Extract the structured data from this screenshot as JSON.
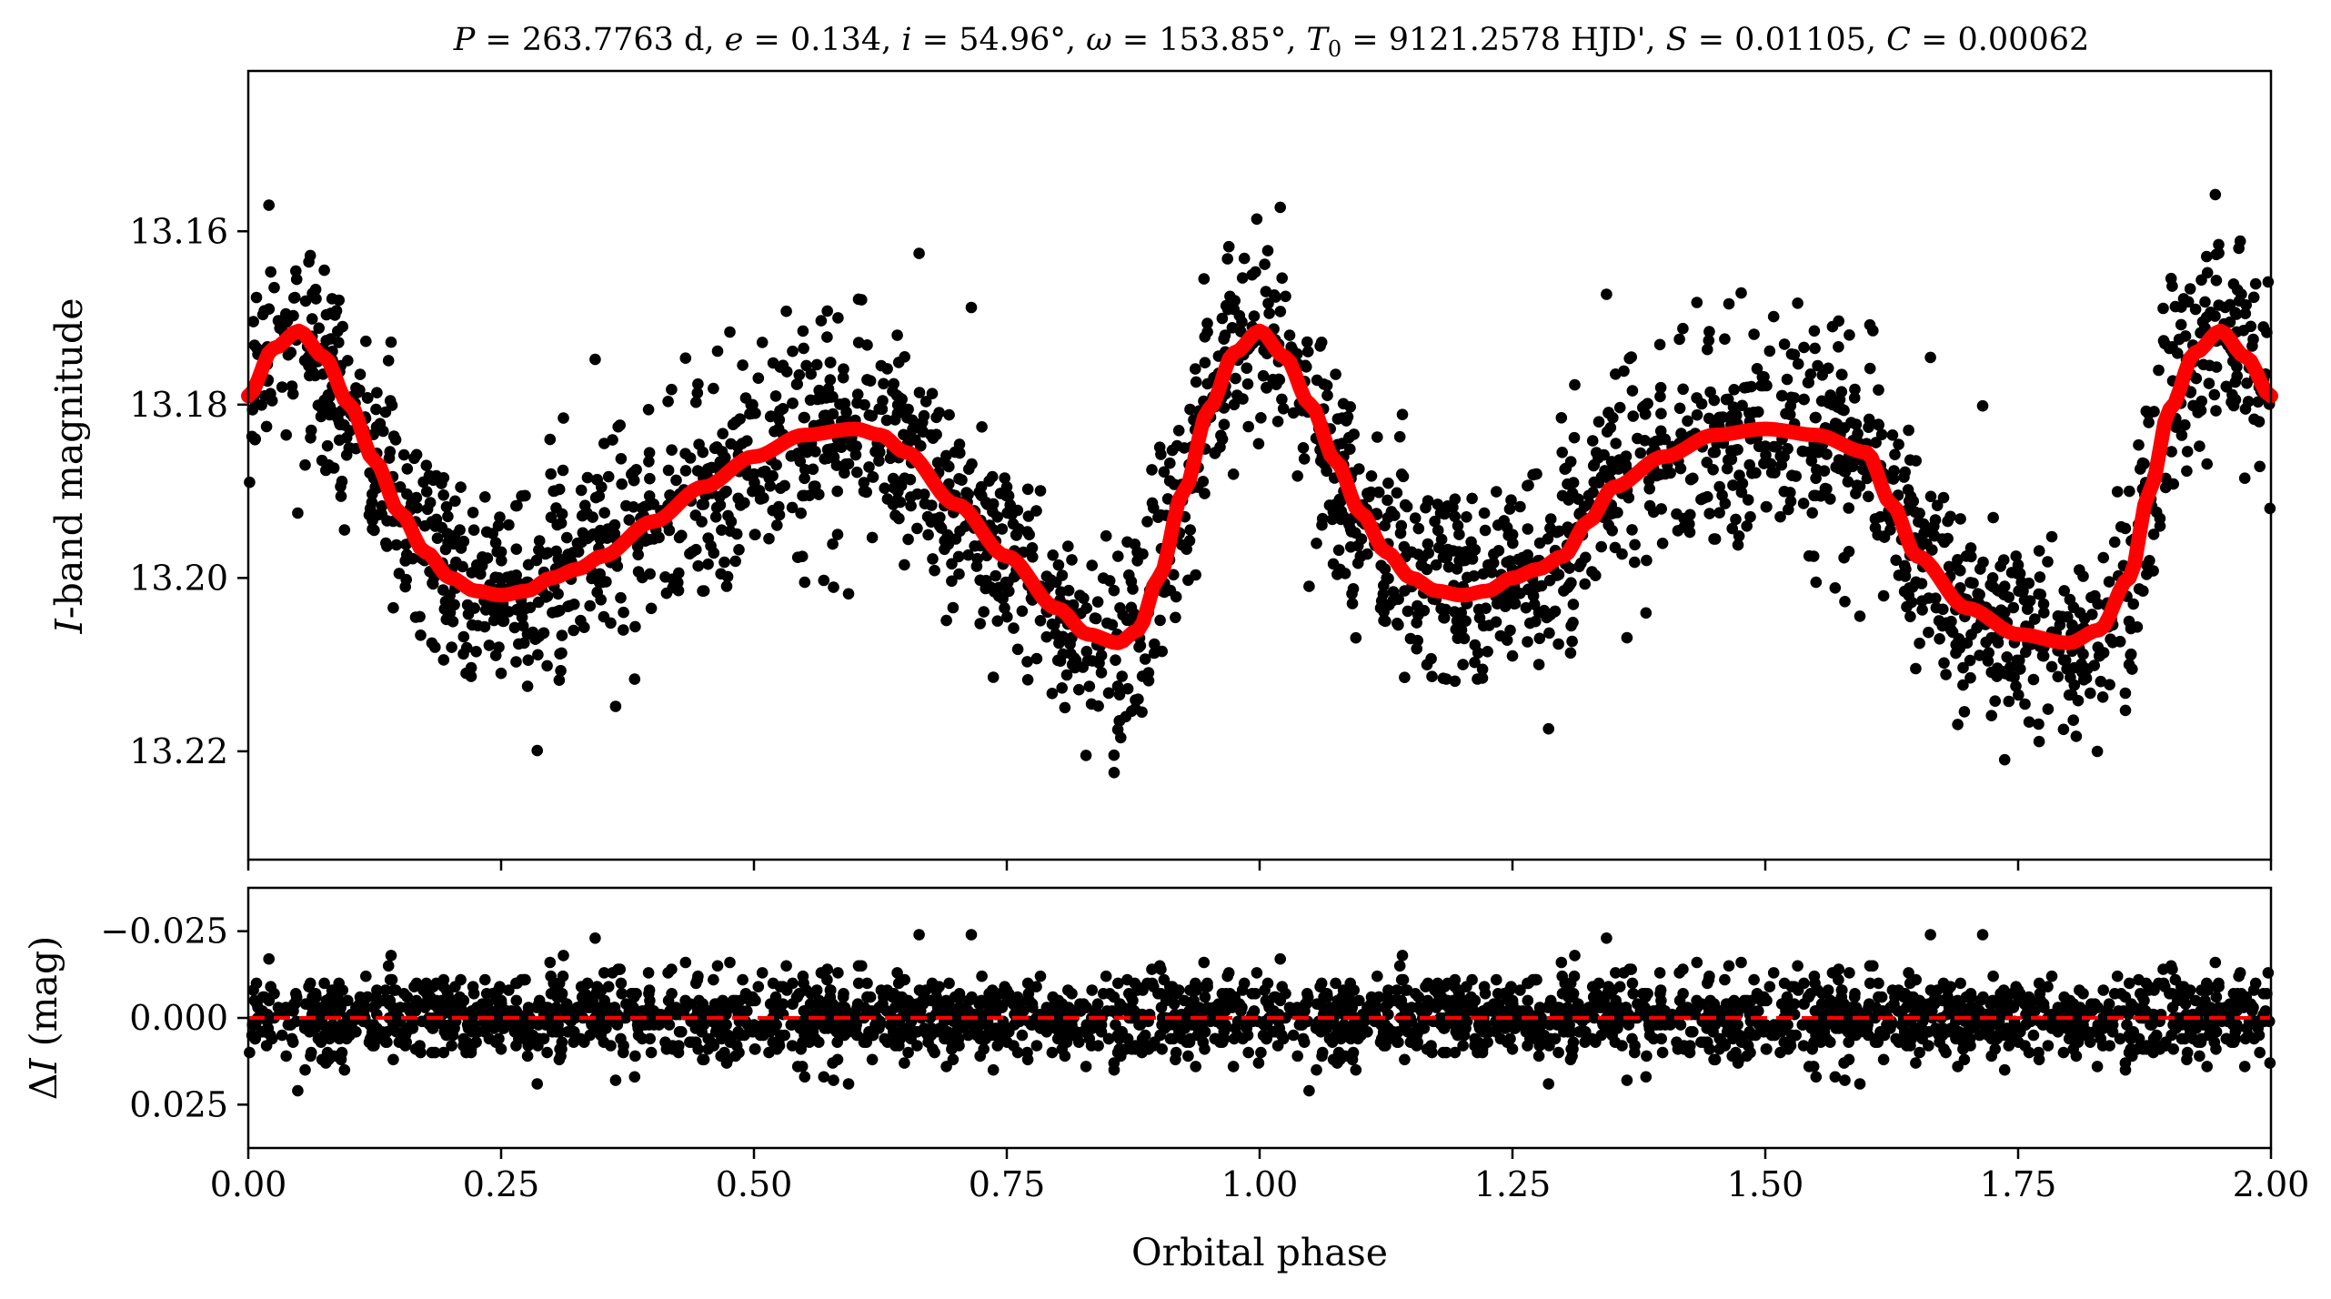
{
  "chart_data": [
    {
      "type": "scatter",
      "panel": "top",
      "title": "P = 263.7763 d, e = 0.134, i = 54.96°, ω = 153.85°, T₀ = 9121.2578 HJD', S = 0.01105, C = 0.00062",
      "title_parts": {
        "P_sym": "P",
        "P_val": " = 263.7763 d, ",
        "e_sym": "e",
        "e_val": " = 0.134, ",
        "i_sym": "i",
        "i_val": " = 54.96°, ",
        "w_sym": "ω",
        "w_val": " = 153.85°, ",
        "T_sym": "T",
        "T_sub": "0",
        "T_val": " = 9121.2578 HJD', ",
        "S_sym": "S",
        "S_val": " = 0.01105, ",
        "C_sym": "C",
        "C_val": " = 0.00062"
      },
      "xlabel": "",
      "ylabel": "I-band magnitude",
      "ylabel_parts": {
        "italic": "I",
        "rest": "-band magnitude"
      },
      "xlim": [
        0.0,
        2.0
      ],
      "ylim": [
        13.2325,
        13.1415
      ],
      "y_inverted": true,
      "yticks": [
        "13.16",
        "13.18",
        "13.20",
        "13.22"
      ],
      "ytick_values": [
        13.16,
        13.18,
        13.2,
        13.22
      ],
      "xticks": [
        0.0,
        0.25,
        0.5,
        0.75,
        1.0,
        1.25,
        1.5,
        1.75,
        2.0
      ],
      "grid": false,
      "legend": "none",
      "series": [
        {
          "kind": "model",
          "color": "#ff0000",
          "x": [
            0.0,
            0.025,
            0.05,
            0.075,
            0.1,
            0.125,
            0.15,
            0.175,
            0.2,
            0.225,
            0.25,
            0.275,
            0.3,
            0.325,
            0.35,
            0.4,
            0.45,
            0.5,
            0.55,
            0.6,
            0.625,
            0.65,
            0.7,
            0.75,
            0.8,
            0.83,
            0.86,
            0.88,
            0.9,
            0.925,
            0.95,
            0.975,
            1.0,
            1.025,
            1.05,
            1.075,
            1.1,
            1.125,
            1.15,
            1.175,
            1.2,
            1.225,
            1.25,
            1.275,
            1.3,
            1.325,
            1.35,
            1.4,
            1.45,
            1.5,
            1.55,
            1.6,
            1.625,
            1.65,
            1.7,
            1.75,
            1.8,
            1.83,
            1.86,
            1.88,
            1.9,
            1.925,
            1.95,
            1.975,
            2.0
          ],
          "y": [
            13.179,
            13.1735,
            13.1715,
            13.1745,
            13.18,
            13.1865,
            13.1925,
            13.197,
            13.2,
            13.2015,
            13.202,
            13.2015,
            13.2,
            13.199,
            13.1975,
            13.1935,
            13.1895,
            13.186,
            13.1835,
            13.1828,
            13.1835,
            13.1855,
            13.1915,
            13.1975,
            13.2035,
            13.2065,
            13.2075,
            13.206,
            13.2,
            13.19,
            13.1805,
            13.174,
            13.1715,
            13.1745,
            13.18,
            13.1865,
            13.1925,
            13.197,
            13.2,
            13.2015,
            13.202,
            13.2015,
            13.2,
            13.199,
            13.1975,
            13.1935,
            13.1895,
            13.186,
            13.1835,
            13.1828,
            13.1835,
            13.1855,
            13.1915,
            13.1975,
            13.2035,
            13.2065,
            13.2075,
            13.206,
            13.2,
            13.19,
            13.1805,
            13.174,
            13.1715,
            13.1745,
            13.179
          ]
        },
        {
          "kind": "observations",
          "color": "#000000",
          "n_points_per_cycle": 1300,
          "scatter_sigma_mag": 0.006,
          "note_generated": "points follow the model with ~0.006 mag scatter"
        }
      ]
    },
    {
      "type": "scatter",
      "panel": "bottom",
      "xlabel": "Orbital phase",
      "ylabel": "ΔI (mag)",
      "ylabel_parts": {
        "delta": "Δ",
        "italic": "I",
        "rest": " (mag)"
      },
      "xlim": [
        0.0,
        2.0
      ],
      "ylim": [
        0.0375,
        -0.0375
      ],
      "y_inverted": true,
      "yticks": [
        "−0.025",
        "0.000",
        "0.025"
      ],
      "ytick_values": [
        -0.025,
        0.0,
        0.025
      ],
      "xticks": [
        "0.00",
        "0.25",
        "0.50",
        "0.75",
        "1.00",
        "1.25",
        "1.50",
        "1.75",
        "2.00"
      ],
      "xtick_values": [
        0.0,
        0.25,
        0.5,
        0.75,
        1.0,
        1.25,
        1.5,
        1.75,
        2.0
      ],
      "reference_line": {
        "y": 0.0,
        "style": "dashed",
        "color": "#ff0000"
      },
      "grid": false,
      "legend": "none",
      "series": [
        {
          "kind": "residuals",
          "color": "#000000",
          "mean": 0.0,
          "scatter_sigma_mag": 0.006
        }
      ]
    }
  ]
}
